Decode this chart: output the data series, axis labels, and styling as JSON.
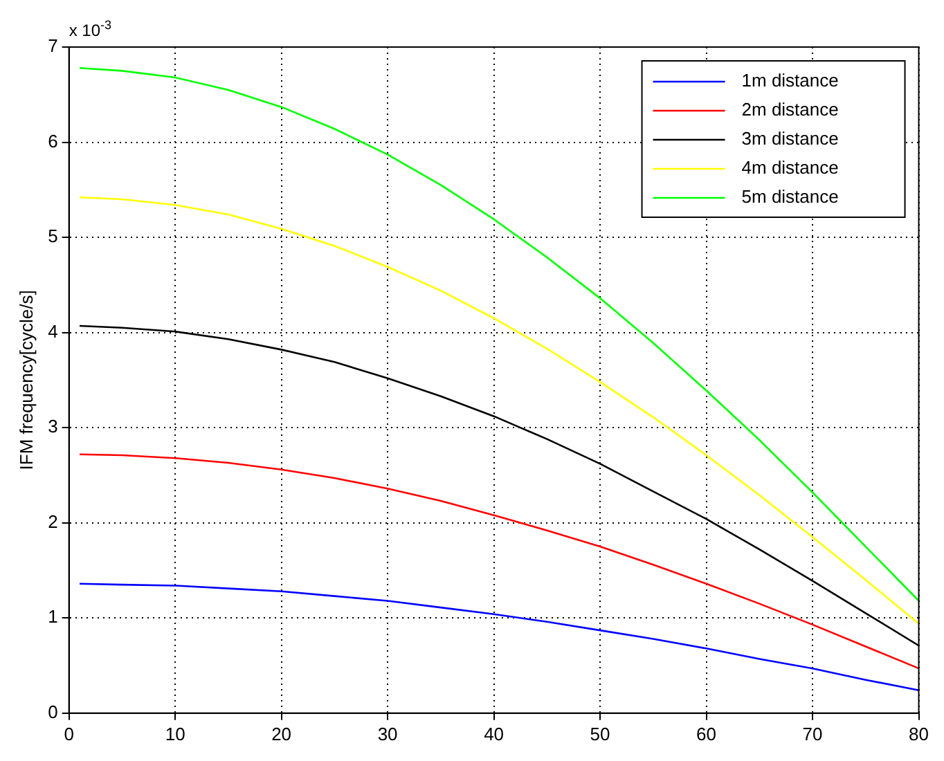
{
  "chart_data": {
    "type": "line",
    "ylabel": "IFM frequency[cycle/s]",
    "annotations": [
      "x 10$^{-3}$"
    ],
    "x": [
      1,
      5,
      10,
      15,
      20,
      25,
      30,
      35,
      40,
      45,
      50,
      55,
      60,
      65,
      70,
      75,
      80
    ],
    "series": [
      {
        "name": "1m distance",
        "color": "#0000ff",
        "values": [
          1.36,
          1.35,
          1.34,
          1.31,
          1.28,
          1.23,
          1.18,
          1.11,
          1.04,
          0.96,
          0.87,
          0.78,
          0.68,
          0.57,
          0.47,
          0.35,
          0.24
        ]
      },
      {
        "name": "2m distance",
        "color": "#ff0000",
        "values": [
          2.72,
          2.71,
          2.68,
          2.63,
          2.56,
          2.47,
          2.36,
          2.23,
          2.08,
          1.92,
          1.75,
          1.56,
          1.36,
          1.15,
          0.93,
          0.7,
          0.47
        ]
      },
      {
        "name": "3m distance",
        "color": "#000000",
        "values": [
          4.07,
          4.05,
          4.01,
          3.93,
          3.82,
          3.69,
          3.52,
          3.33,
          3.12,
          2.88,
          2.62,
          2.33,
          2.04,
          1.72,
          1.39,
          1.05,
          0.71
        ]
      },
      {
        "name": "4m distance",
        "color": "#ffff00",
        "values": [
          5.42,
          5.4,
          5.34,
          5.24,
          5.09,
          4.91,
          4.69,
          4.44,
          4.15,
          3.83,
          3.48,
          3.11,
          2.71,
          2.29,
          1.85,
          1.4,
          0.94
        ]
      },
      {
        "name": "5m distance",
        "color": "#00ff00",
        "values": [
          6.78,
          6.75,
          6.68,
          6.55,
          6.37,
          6.14,
          5.87,
          5.55,
          5.19,
          4.79,
          4.36,
          3.89,
          3.39,
          2.87,
          2.32,
          1.75,
          1.18
        ]
      }
    ],
    "xlim": [
      0,
      80
    ],
    "xticks": [
      0,
      10,
      20,
      30,
      40,
      50,
      60,
      70,
      80
    ],
    "ylim": [
      0,
      7
    ],
    "yticks": [
      0,
      1,
      2,
      3,
      4,
      5,
      6,
      7
    ],
    "grid": true,
    "legend": "top right",
    "marker": "none",
    "line_style": "solid"
  }
}
